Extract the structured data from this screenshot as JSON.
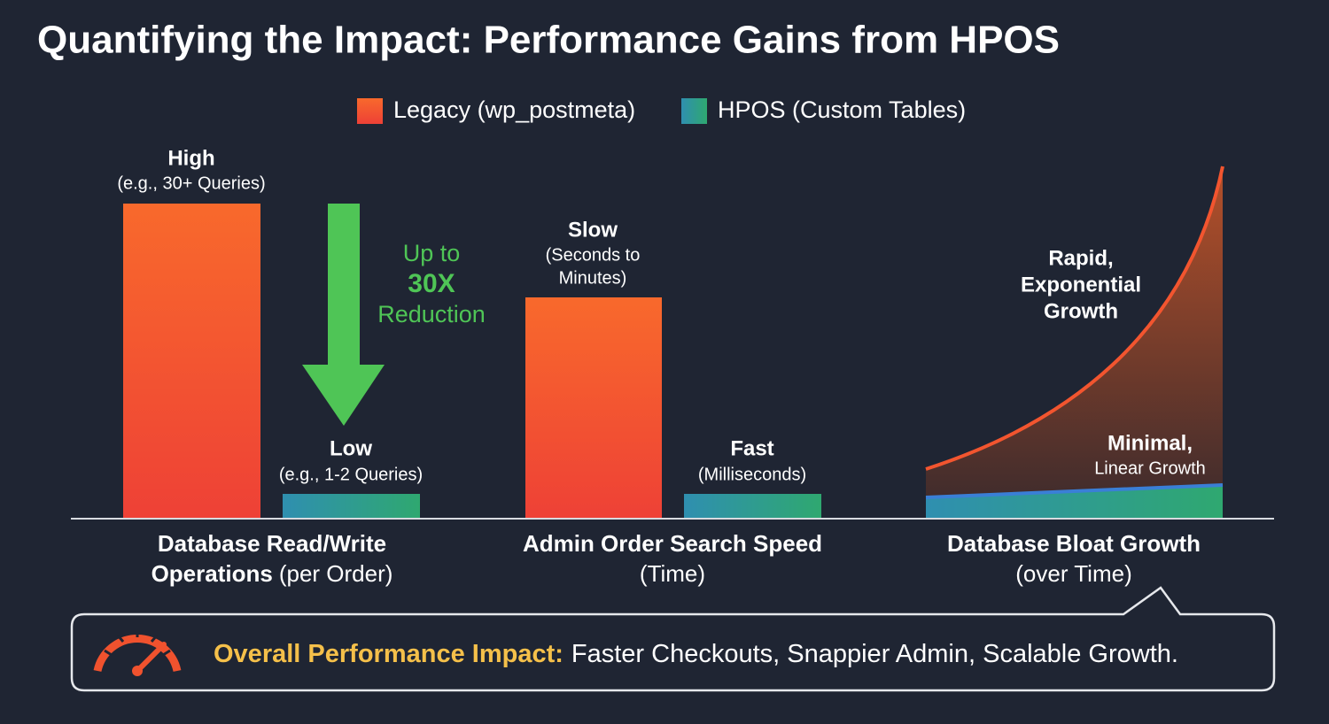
{
  "title": "Quantifying the Impact: Performance Gains from HPOS",
  "legend": [
    "Legacy (wp_postmeta)",
    "HPOS (Custom Tables)"
  ],
  "groups": [
    {
      "name": "Database Read/Write",
      "name_bold_part": "Operations",
      "name_rest": "(per Order)",
      "legacy_label": "High",
      "legacy_note": [
        "(e.g., 30+ Queries)"
      ],
      "hpos_label": "Low",
      "hpos_note": [
        "(e.g., 1-2 Queries)"
      ]
    },
    {
      "name": "Admin Order Search Speed",
      "name_rest": "(Time)",
      "legacy_label": "Slow",
      "legacy_note": [
        "(Seconds to",
        "Minutes)"
      ],
      "hpos_label": "Fast",
      "hpos_note": [
        "(Milliseconds)"
      ]
    },
    {
      "name": "Database Bloat Growth",
      "name_rest": "(over Time)",
      "legacy_label": [
        "Rapid,",
        "Exponential",
        "Growth"
      ],
      "hpos_label": "Minimal,",
      "hpos_note": [
        "Linear Growth"
      ]
    }
  ],
  "annotation": [
    "Up to",
    "30X",
    "Reduction"
  ],
  "callout": {
    "lead": "Overall Performance Impact:",
    "text": "Faster Checkouts, Snappier Admin, Scalable Growth."
  }
}
